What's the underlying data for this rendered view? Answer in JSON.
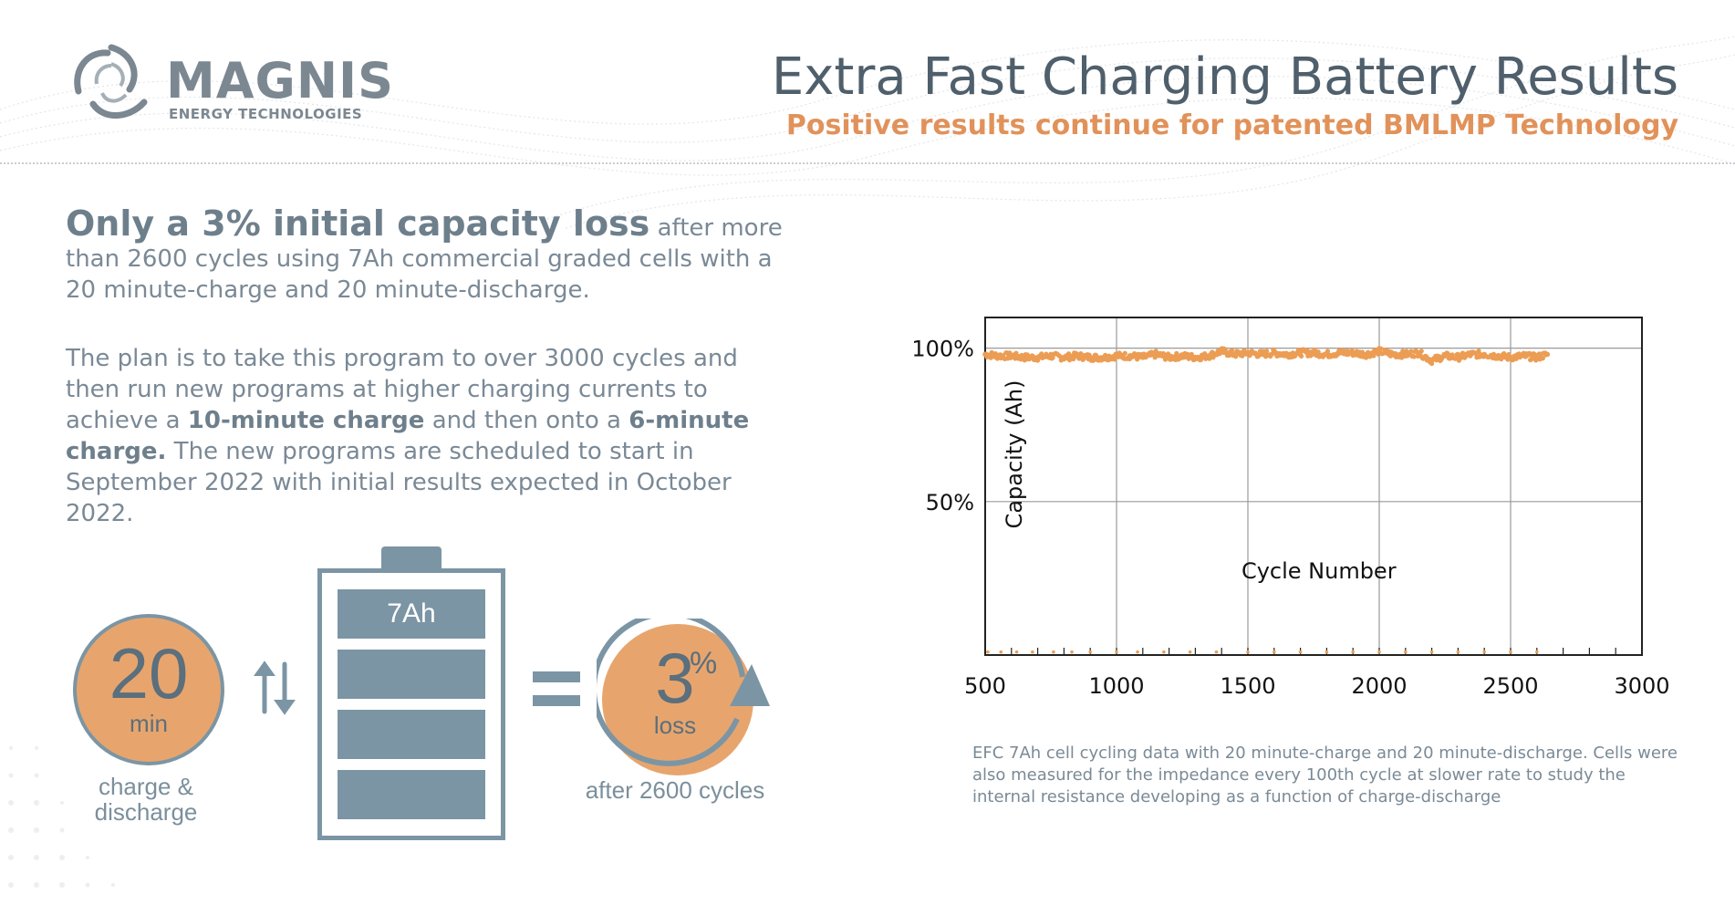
{
  "header": {
    "logo_name": "MAGNIS",
    "logo_tagline": "ENERGY TECHNOLOGIES",
    "title": "Extra Fast Charging Battery Results",
    "subtitle": "Positive results continue for patented BMLMP Technology"
  },
  "text": {
    "p1_bold": "Only a 3% initial capacity loss",
    "p1_rest": "after more than 2600 cycles using 7Ah commercial graded cells with a 20 minute-charge and 20 minute-discharge.",
    "p2_a": "The plan is to take this program to over 3000 cycles and then run new programs at higher charging currents to achieve a ",
    "p2_b1": "10-minute charge",
    "p2_c": " and then onto a ",
    "p2_b2": "6-minute charge.",
    "p2_d": " The new programs are scheduled to start in September 2022 with initial results expected in October 2022."
  },
  "infographic": {
    "time_value": "20",
    "time_unit": "min",
    "time_caption": "charge & discharge",
    "battery_label": "7Ah",
    "loss_value": "3",
    "loss_percent_sign": "%",
    "loss_unit": "loss",
    "loss_caption": "after 2600 cycles",
    "accent_color": "#e7a56d",
    "slate_color": "#7b95a4"
  },
  "chart_data": {
    "type": "scatter",
    "title": "",
    "xlabel": "Cycle Number",
    "ylabel": "Capacity (Ah)",
    "xlim": [
      500,
      3000
    ],
    "ylim": [
      0,
      110
    ],
    "x_ticks": [
      "500",
      "1000",
      "1500",
      "2000",
      "2500",
      "3000"
    ],
    "y_ticks": [
      {
        "value": 50,
        "label": "50%"
      },
      {
        "value": 100,
        "label": "100%"
      }
    ],
    "grid": true,
    "marker_color": "#ec9d54",
    "series": [
      {
        "x": [
          500,
          550,
          600,
          650,
          700,
          750,
          800,
          850,
          900,
          950,
          1000,
          1050,
          1100,
          1150,
          1200,
          1250,
          1300,
          1350,
          1400,
          1450,
          1500,
          1550,
          1600,
          1650,
          1700,
          1750,
          1800,
          1850,
          1900,
          1950,
          2000,
          2050,
          2100,
          2150,
          2200,
          2250,
          2300,
          2350,
          2400,
          2450,
          2500,
          2550,
          2600,
          2640
        ],
        "y": [
          98,
          97.5,
          97.5,
          97,
          97,
          97.5,
          97,
          97.5,
          97,
          97,
          97.5,
          97.5,
          97,
          98,
          97,
          97.5,
          97,
          97.5,
          99,
          98,
          98.5,
          98,
          98.5,
          98,
          98.5,
          98.5,
          98,
          98.5,
          98.5,
          98,
          99,
          98,
          98,
          98.5,
          96,
          97.5,
          97,
          98,
          98,
          97.5,
          97,
          97.5,
          97,
          98
        ]
      }
    ],
    "baseline_markers": [
      {
        "x": 510,
        "y": 1
      },
      {
        "x": 560,
        "y": 1
      },
      {
        "x": 620,
        "y": 1
      },
      {
        "x": 680,
        "y": 1
      },
      {
        "x": 760,
        "y": 1
      },
      {
        "x": 830,
        "y": 1
      },
      {
        "x": 900,
        "y": 1
      },
      {
        "x": 1000,
        "y": 1
      },
      {
        "x": 1080,
        "y": 1
      },
      {
        "x": 1180,
        "y": 1
      },
      {
        "x": 1280,
        "y": 1
      },
      {
        "x": 1380,
        "y": 1
      },
      {
        "x": 1500,
        "y": 1
      },
      {
        "x": 1600,
        "y": 1
      },
      {
        "x": 1700,
        "y": 1
      },
      {
        "x": 1800,
        "y": 1
      },
      {
        "x": 1900,
        "y": 1
      },
      {
        "x": 2000,
        "y": 1
      },
      {
        "x": 2100,
        "y": 1
      },
      {
        "x": 2200,
        "y": 1
      },
      {
        "x": 2300,
        "y": 1
      },
      {
        "x": 2400,
        "y": 1
      },
      {
        "x": 2500,
        "y": 1
      },
      {
        "x": 2600,
        "y": 1
      }
    ]
  },
  "chart_caption": "EFC 7Ah cell cycling data with 20 minute-charge and 20 minute-discharge. Cells were also measured for the impedance every 100th cycle at slower rate to study the internal resistance developing as a function of charge-discharge"
}
